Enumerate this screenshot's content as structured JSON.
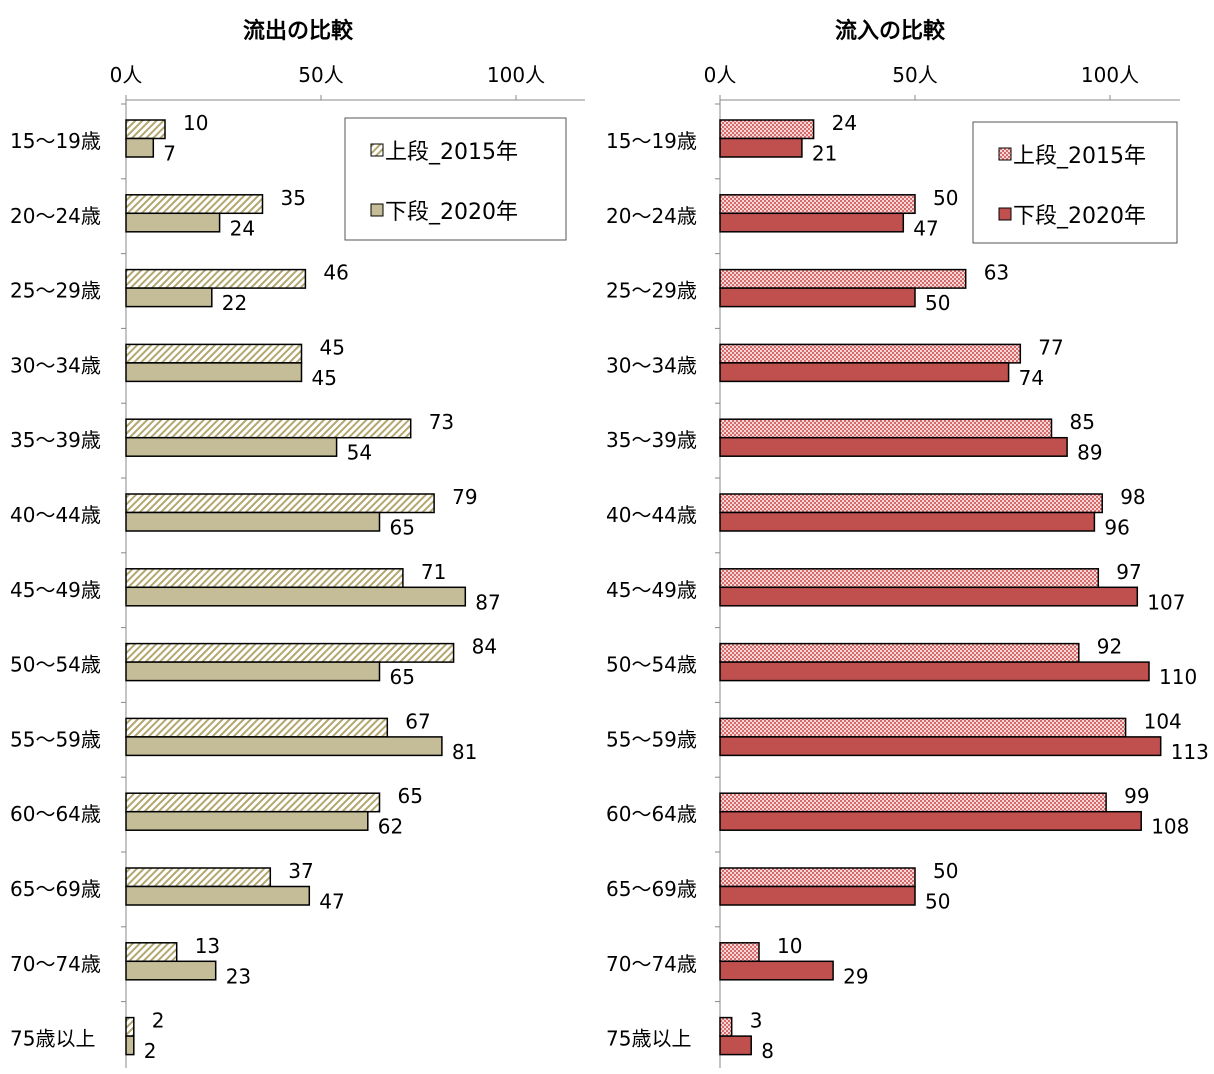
{
  "chart_data": [
    {
      "type": "bar",
      "orientation": "horizontal",
      "title": "流出の比較",
      "x_ticks": [
        "0人",
        "50人",
        "100人"
      ],
      "xlim": [
        0,
        120
      ],
      "categories": [
        "15～19歳",
        "20～24歳",
        "25～29歳",
        "30～34歳",
        "35～39歳",
        "40～44歳",
        "45～49歳",
        "50～54歳",
        "55～59歳",
        "60～64歳",
        "65～69歳",
        "70～74歳",
        "75歳以上"
      ],
      "series": [
        {
          "name": "上段_2015年",
          "pattern": "diagonal-hatch",
          "color": "#c8bf9a",
          "values": [
            10,
            35,
            46,
            45,
            73,
            79,
            71,
            84,
            67,
            65,
            37,
            13,
            2
          ]
        },
        {
          "name": "下段_2020年",
          "pattern": "solid",
          "color": "#c4bd97",
          "values": [
            7,
            24,
            22,
            45,
            54,
            65,
            87,
            65,
            81,
            62,
            47,
            23,
            2
          ]
        }
      ],
      "legend_position": "top-right",
      "grid": false
    },
    {
      "type": "bar",
      "orientation": "horizontal",
      "title": "流入の比較",
      "x_ticks": [
        "0人",
        "50人",
        "100人"
      ],
      "xlim": [
        0,
        120
      ],
      "categories": [
        "15～19歳",
        "20～24歳",
        "25～29歳",
        "30～34歳",
        "35～39歳",
        "40～44歳",
        "45～49歳",
        "50～54歳",
        "55～59歳",
        "60～64歳",
        "65～69歳",
        "70～74歳",
        "75歳以上"
      ],
      "series": [
        {
          "name": "上段_2015年",
          "pattern": "checker",
          "color": "#e8a0a0",
          "values": [
            24,
            50,
            63,
            77,
            85,
            98,
            97,
            92,
            104,
            99,
            50,
            10,
            3
          ]
        },
        {
          "name": "下段_2020年",
          "pattern": "solid",
          "color": "#c0504d",
          "values": [
            21,
            47,
            50,
            74,
            89,
            96,
            107,
            110,
            113,
            108,
            50,
            29,
            8
          ]
        }
      ],
      "legend_position": "top-right",
      "grid": false
    }
  ]
}
